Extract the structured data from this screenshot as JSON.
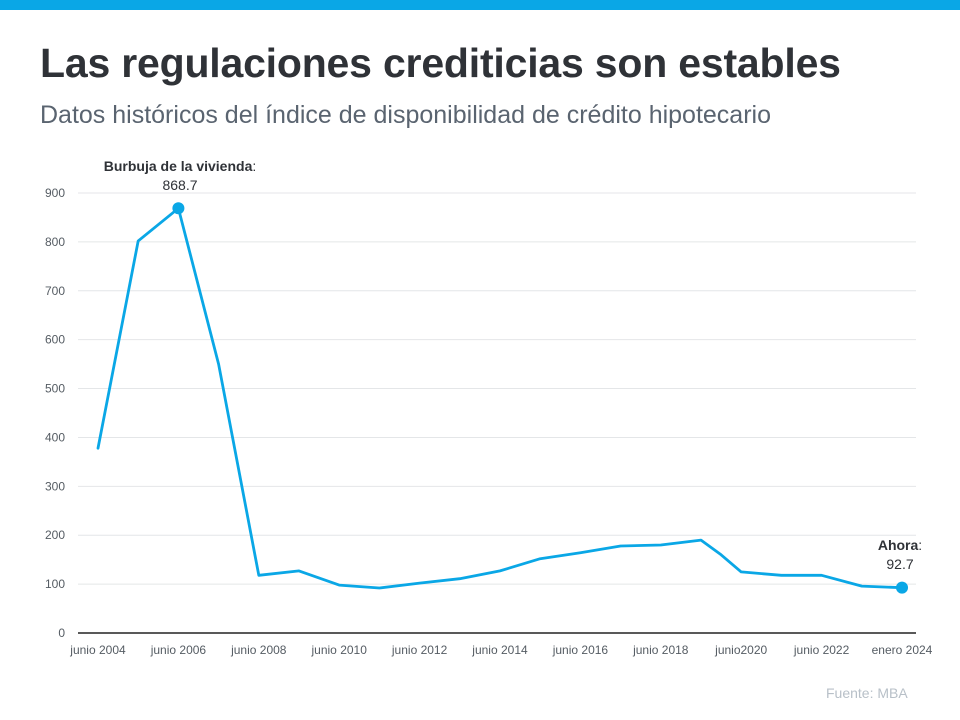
{
  "header": {
    "title": "Las regulaciones crediticias son estables",
    "subtitle": "Datos históricos del índice de disponibilidad de crédito hipotecario"
  },
  "footer": {
    "source": "Fuente:  MBA"
  },
  "colors": {
    "accent": "#0aa7e6",
    "line": "#0aa7e6",
    "grid": "#e4e6e8",
    "axis": "#222222"
  },
  "chart_data": {
    "type": "line",
    "title": "Las regulaciones crediticias son estables",
    "subtitle": "Datos históricos del índice de disponibilidad de crédito hipotecario",
    "xlabel": "",
    "ylabel": "",
    "ylim": [
      0,
      900
    ],
    "yticks": [
      0,
      100,
      200,
      300,
      400,
      500,
      600,
      700,
      800,
      900
    ],
    "grid": true,
    "x_tick_labels": [
      "junio 2004",
      "junio 2006",
      "junio 2008",
      "junio 2010",
      "junio 2012",
      "junio 2014",
      "junio 2016",
      "junio 2018",
      "junio2020",
      "junio 2022",
      "enero 2024"
    ],
    "x_tick_positions": [
      0,
      2,
      4,
      6,
      8,
      10,
      12,
      14,
      16,
      18,
      20
    ],
    "series": [
      {
        "name": "Índice de disponibilidad de crédito hipotecario",
        "x": [
          0,
          1,
          2,
          3,
          4,
          5,
          6,
          7,
          8,
          9,
          10,
          11,
          12,
          13,
          14,
          15,
          15.5,
          16,
          17,
          18,
          19,
          20
        ],
        "values": [
          378,
          802,
          868.7,
          550,
          118,
          127,
          98,
          92,
          102,
          111,
          127,
          152,
          164,
          178,
          180,
          190,
          160,
          125,
          118,
          118,
          96,
          92.7
        ]
      }
    ],
    "annotations": [
      {
        "label": "Burbuja de la vivienda",
        "separator": ":",
        "value_text": "868.7",
        "x": 2,
        "y": 868.7
      },
      {
        "label": "Ahora",
        "separator": ":",
        "value_text": "92.7",
        "x": 20,
        "y": 92.7
      }
    ]
  }
}
